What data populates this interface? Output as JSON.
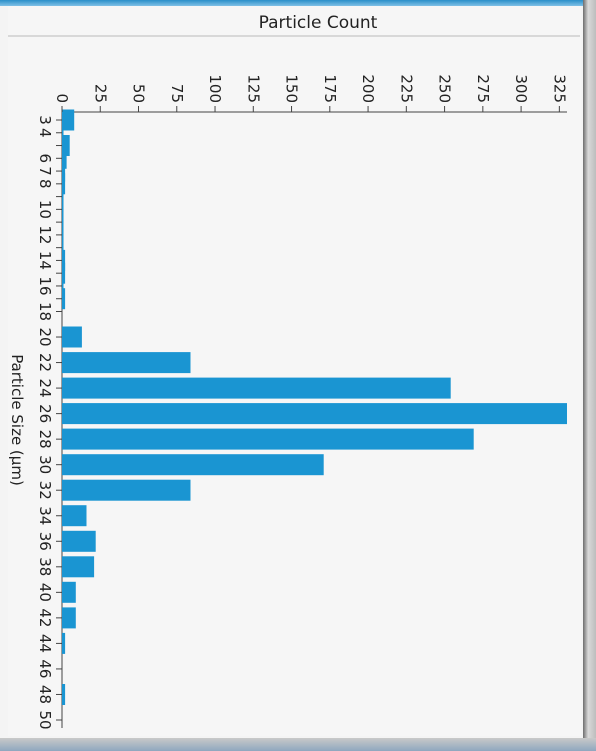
{
  "chart_data": {
    "type": "bar",
    "orientation": "vertical-bars-rotated-90",
    "title": "Particle Count",
    "xlabel": "Particle Size (µm)",
    "ylabel": "",
    "ylim": [
      0,
      330
    ],
    "yticks": [
      0,
      25,
      50,
      75,
      100,
      125,
      150,
      175,
      200,
      225,
      250,
      275,
      300,
      325
    ],
    "x_tick_labels": [
      "3",
      "4",
      "6",
      "7",
      "8",
      "10",
      "12",
      "14",
      "16",
      "18",
      "20",
      "22",
      "24",
      "26",
      "28",
      "30",
      "32",
      "34",
      "36",
      "38",
      "40",
      "42",
      "44",
      "46",
      "48",
      "50"
    ],
    "x": [
      3,
      4,
      5,
      6,
      7,
      8,
      9,
      10,
      11,
      12,
      13,
      14,
      15,
      16,
      17,
      18,
      20,
      22,
      24,
      26,
      28,
      30,
      32,
      34,
      36,
      38,
      40,
      42,
      44,
      46,
      48,
      50
    ],
    "values": [
      8,
      1,
      5,
      3,
      2,
      2,
      1,
      1,
      1,
      1,
      1,
      2,
      2,
      1,
      2,
      0,
      13,
      84,
      254,
      330,
      269,
      171,
      84,
      16,
      22,
      21,
      9,
      9,
      2,
      0,
      2,
      0
    ],
    "grid": false,
    "bar_color": "#1a95d2"
  }
}
